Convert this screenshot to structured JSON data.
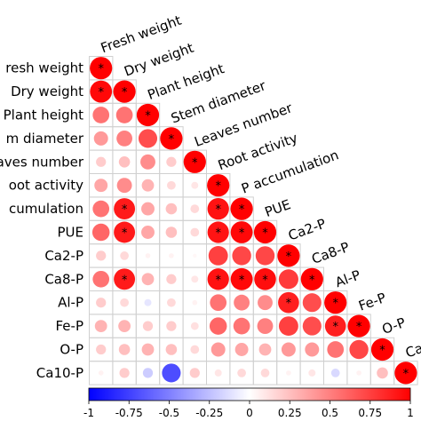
{
  "chart_data": {
    "type": "heatmap",
    "variables": [
      "Fresh weight",
      "Dry weight",
      "Plant height",
      "Stem diameter",
      "Leaves number",
      "Root activity",
      "P accumulation",
      "PUE",
      "Ca2-P",
      "Ca8-P",
      "Al-P",
      "Fe-P",
      "O-P",
      "Ca10-P"
    ],
    "row_labels_visible": [
      "resh weight",
      "Dry weight",
      "Plant height",
      "m diameter",
      "aves number",
      "oot activity",
      "cumulation",
      "PUE",
      "Ca2-P",
      "Ca8-P",
      "Al-P",
      "Fe-P",
      "O-P",
      "Ca10-P"
    ],
    "col_labels_visible": [
      "Fresh weight",
      "Dry weight",
      "Plant height",
      "Stem diameter",
      "Leaves number",
      "Root activity",
      "P accumulation",
      "PUE",
      "Ca2-P",
      "Ca8-P",
      "Al-P",
      "Fe-P",
      "O-P",
      "Ca"
    ],
    "matrix_lower": [
      [
        1.0
      ],
      [
        0.97,
        1.0
      ],
      [
        0.55,
        0.55,
        1.0
      ],
      [
        0.4,
        0.5,
        0.7,
        1.0
      ],
      [
        0.2,
        0.25,
        0.45,
        0.2,
        1.0
      ],
      [
        0.35,
        0.45,
        0.3,
        0.15,
        0.1,
        1.0
      ],
      [
        0.55,
        0.9,
        0.35,
        0.25,
        0.15,
        0.93,
        1.0
      ],
      [
        0.6,
        0.9,
        0.35,
        0.25,
        0.15,
        0.92,
        0.97,
        1.0
      ],
      [
        0.2,
        0.15,
        0.05,
        0.05,
        0.03,
        0.75,
        0.72,
        0.72,
        1.0
      ],
      [
        0.55,
        0.9,
        0.3,
        0.2,
        0.1,
        0.93,
        0.97,
        0.95,
        0.77,
        1.0
      ],
      [
        0.2,
        0.15,
        -0.1,
        0.15,
        0.05,
        0.55,
        0.5,
        0.45,
        0.88,
        0.7,
        1.0
      ],
      [
        0.3,
        0.3,
        0.2,
        0.2,
        0.12,
        0.6,
        0.55,
        0.5,
        0.75,
        0.7,
        0.88,
        1.0
      ],
      [
        0.2,
        0.25,
        0.3,
        0.25,
        0.15,
        0.4,
        0.35,
        0.3,
        0.4,
        0.4,
        0.55,
        0.72,
        1.0
      ],
      [
        0.05,
        0.2,
        -0.2,
        -0.7,
        0.2,
        0.1,
        0.15,
        0.15,
        0.05,
        0.1,
        -0.15,
        0.05,
        0.25,
        1.0
      ]
    ],
    "significant": [
      [
        0,
        0
      ],
      [
        1,
        0
      ],
      [
        1,
        1
      ],
      [
        2,
        2
      ],
      [
        3,
        3
      ],
      [
        4,
        4
      ],
      [
        5,
        5
      ],
      [
        6,
        1
      ],
      [
        6,
        5
      ],
      [
        6,
        6
      ],
      [
        7,
        1
      ],
      [
        7,
        5
      ],
      [
        7,
        6
      ],
      [
        7,
        7
      ],
      [
        8,
        8
      ],
      [
        9,
        1
      ],
      [
        9,
        5
      ],
      [
        9,
        6
      ],
      [
        9,
        7
      ],
      [
        9,
        9
      ],
      [
        10,
        8
      ],
      [
        10,
        10
      ],
      [
        11,
        10
      ],
      [
        11,
        11
      ],
      [
        12,
        12
      ],
      [
        13,
        13
      ]
    ],
    "colorbar": {
      "range": [
        -1,
        1
      ],
      "ticks": [
        "-1",
        "-0.75",
        "-0.5",
        "-0.25",
        "0",
        "0.25",
        "0.5",
        "0.75",
        "1"
      ],
      "low_color": "#0000ff",
      "mid_color": "#ffffff",
      "high_color": "#ff0000"
    },
    "marker": "*"
  }
}
